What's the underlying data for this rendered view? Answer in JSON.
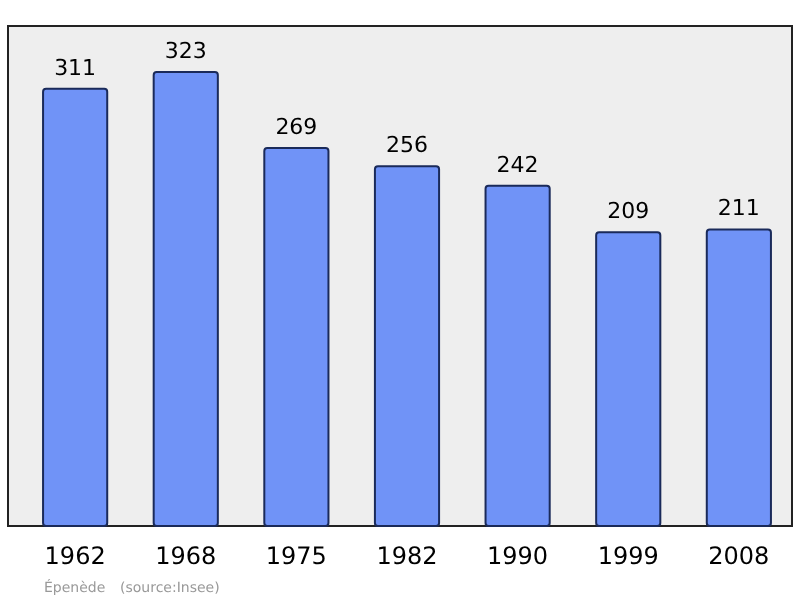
{
  "chart_data": {
    "type": "bar",
    "categories": [
      "1962",
      "1968",
      "1975",
      "1982",
      "1990",
      "1999",
      "2008"
    ],
    "values": [
      311,
      323,
      269,
      256,
      242,
      209,
      211
    ],
    "color": "#7093f7",
    "data_labels": true,
    "annotations": [
      "Épenède",
      "(source:Insee)"
    ]
  }
}
